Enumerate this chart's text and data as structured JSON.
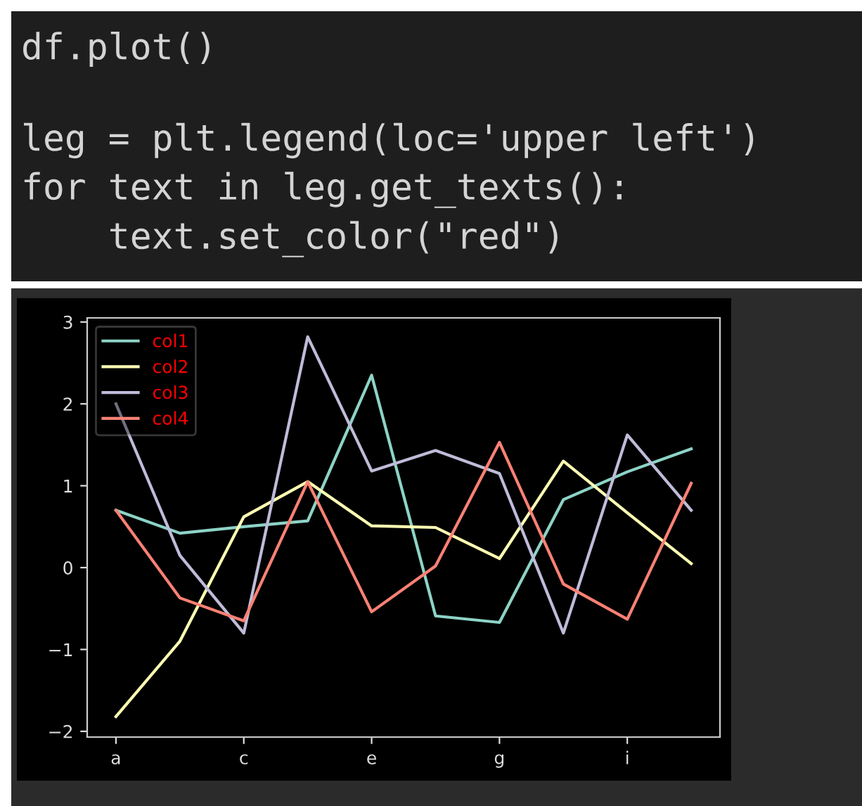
{
  "chart_data": {
    "type": "line",
    "annotations": [
      "df.plot()",
      "leg = plt.legend(loc='upper left')",
      "for text in leg.get_texts():",
      "    text.set_color(\"red\")"
    ],
    "categories": [
      "a",
      null,
      "c",
      null,
      "e",
      null,
      "g",
      null,
      "i",
      null
    ],
    "series": [
      {
        "name": "col1",
        "color": "#8dd3c7",
        "values": [
          0.7,
          0.42,
          0.5,
          0.57,
          2.35,
          -0.59,
          -0.67,
          0.83,
          1.17,
          1.45
        ]
      },
      {
        "name": "col2",
        "color": "#feffb3",
        "values": [
          -1.82,
          -0.9,
          0.62,
          1.05,
          0.51,
          0.49,
          0.11,
          1.3,
          0.67,
          0.05
        ]
      },
      {
        "name": "col3",
        "color": "#bfbbd9",
        "values": [
          2.0,
          0.15,
          -0.8,
          2.82,
          1.18,
          1.43,
          1.15,
          -0.8,
          1.62,
          0.7
        ]
      },
      {
        "name": "col4",
        "color": "#fa8174",
        "values": [
          0.7,
          -0.37,
          -0.65,
          1.05,
          -0.54,
          0.02,
          1.53,
          -0.2,
          -0.63,
          1.03
        ]
      }
    ],
    "ylim": [
      -2.07,
      3.05
    ],
    "yticks": [
      {
        "value": -2,
        "label": "−2"
      },
      {
        "value": -1,
        "label": "−1"
      },
      0,
      1,
      2,
      3
    ],
    "legend": "top left",
    "grid": false,
    "marker": "none",
    "line_style": "solid"
  }
}
